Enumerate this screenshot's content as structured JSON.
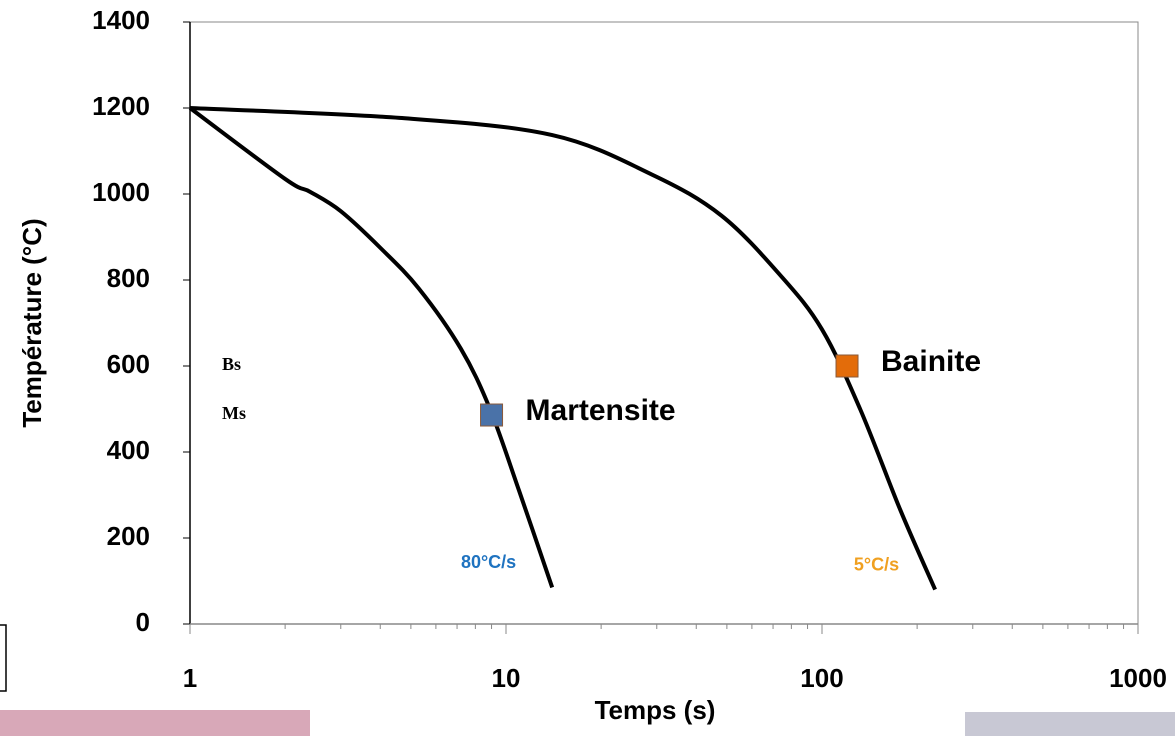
{
  "chart_data": {
    "type": "line",
    "xlabel": "Temps (s)",
    "ylabel": "Température (°C)",
    "xscale": "log",
    "xlim": [
      1,
      1000
    ],
    "ylim": [
      0,
      1400
    ],
    "xticks": [
      1,
      10,
      100,
      1000
    ],
    "xminorticks": [
      2,
      3,
      4,
      5,
      6,
      7,
      8,
      9,
      20,
      30,
      40,
      50,
      60,
      70,
      80,
      90,
      200,
      300,
      400,
      500,
      600,
      700,
      800,
      900
    ],
    "yticks": [
      0,
      200,
      400,
      600,
      800,
      1000,
      1200,
      1400
    ],
    "series": [
      {
        "name": "80°C/s",
        "color": "#000000",
        "label_color": "#1f73c0",
        "x": [
          1,
          2,
          2.4,
          3,
          4,
          5.3,
          7.2,
          8.9,
          11,
          14
        ],
        "values": [
          1200,
          1035,
          1005,
          960,
          875,
          780,
          640,
          500,
          310,
          85
        ]
      },
      {
        "name": "5°C/s",
        "color": "#000000",
        "label_color": "#f0a020",
        "x": [
          1,
          4.6,
          14,
          29,
          48,
          74,
          100,
          132,
          177,
          228
        ],
        "values": [
          1200,
          1177,
          1137,
          1045,
          950,
          810,
          685,
          500,
          265,
          80
        ]
      }
    ],
    "markers": [
      {
        "name": "Martensite",
        "x": 9,
        "y": 486,
        "color": "#4a72a8"
      },
      {
        "name": "Bainite",
        "x": 120,
        "y": 600,
        "color": "#e36c0a"
      }
    ],
    "annotations": [
      "Bs",
      "Ms"
    ]
  }
}
